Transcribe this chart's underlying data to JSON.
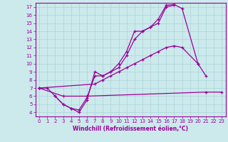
{
  "xlabel": "Windchill (Refroidissement éolien,°C)",
  "xlim": [
    -0.5,
    23.5
  ],
  "ylim": [
    3.5,
    17.5
  ],
  "xticks": [
    0,
    1,
    2,
    3,
    4,
    5,
    6,
    7,
    8,
    9,
    10,
    11,
    12,
    13,
    14,
    15,
    16,
    17,
    18,
    19,
    20,
    21,
    22,
    23
  ],
  "yticks": [
    4,
    5,
    6,
    7,
    8,
    9,
    10,
    11,
    12,
    13,
    14,
    15,
    16,
    17
  ],
  "bg_color": "#cce9ec",
  "grid_color": "#aad4d8",
  "line_color": "#990099",
  "line1_x": [
    0,
    1,
    2,
    3,
    4,
    5,
    6,
    7,
    8,
    9,
    10,
    11,
    12,
    13,
    14,
    15,
    16,
    17,
    18,
    20,
    21
  ],
  "line1_y": [
    7.0,
    7.0,
    6.0,
    5.0,
    4.5,
    4.0,
    5.5,
    9.0,
    8.5,
    9.0,
    10.0,
    11.5,
    14.0,
    14.0,
    14.5,
    15.5,
    17.2,
    17.3,
    16.8,
    10.0,
    8.5
  ],
  "line2_x": [
    0,
    7,
    8,
    9,
    10,
    11,
    12,
    13,
    14,
    15,
    16,
    17,
    18,
    20
  ],
  "line2_y": [
    7.0,
    7.5,
    8.0,
    8.5,
    9.0,
    9.5,
    10.0,
    10.5,
    11.0,
    11.5,
    12.0,
    12.2,
    12.0,
    10.0
  ],
  "line3_x": [
    0,
    3,
    6,
    21,
    23
  ],
  "line3_y": [
    7.0,
    6.0,
    6.0,
    6.5,
    6.5
  ],
  "line4_x": [
    2,
    3,
    4,
    5,
    6,
    7,
    8,
    9,
    10,
    11,
    12,
    13,
    14,
    15,
    16,
    17
  ],
  "line4_y": [
    6.0,
    5.0,
    4.5,
    4.3,
    5.8,
    8.5,
    8.5,
    9.0,
    9.5,
    11.0,
    13.0,
    14.0,
    14.5,
    15.0,
    17.0,
    17.2
  ]
}
